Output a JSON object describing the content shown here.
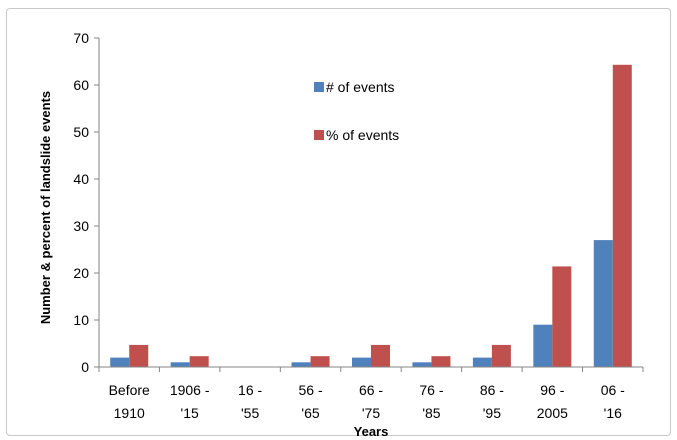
{
  "chart_data": {
    "type": "bar",
    "title": "",
    "xlabel": "Years",
    "ylabel": "Number & percent of landslide events",
    "ylim": [
      0,
      70
    ],
    "yticks": [
      0,
      10,
      20,
      30,
      40,
      50,
      60,
      70
    ],
    "grid": false,
    "legend_position": "top-center",
    "categories": [
      [
        "Before",
        "1910"
      ],
      [
        "1906 -",
        "'15"
      ],
      [
        "16 -",
        "'55"
      ],
      [
        "56 -",
        "'65"
      ],
      [
        "66 -",
        "'75"
      ],
      [
        "76 -",
        "'85"
      ],
      [
        "86 -",
        "'95"
      ],
      [
        "96 -",
        "2005"
      ],
      [
        "06 -",
        "'16"
      ]
    ],
    "series": [
      {
        "name": "# of events",
        "color": "#4f81bd",
        "values": [
          2,
          1,
          0,
          1,
          2,
          1,
          2,
          9,
          27
        ]
      },
      {
        "name": "% of events",
        "color": "#c0504d",
        "values": [
          4.7,
          2.3,
          0,
          2.3,
          4.7,
          2.3,
          4.7,
          21.4,
          64.3
        ]
      }
    ]
  }
}
